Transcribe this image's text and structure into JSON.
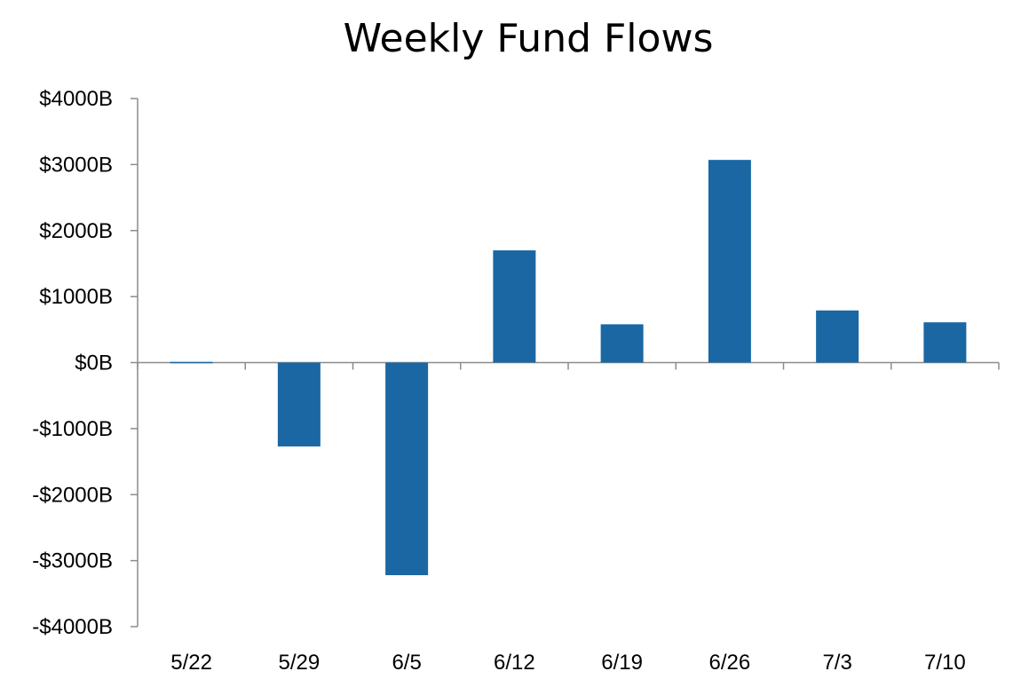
{
  "chart_data": {
    "type": "bar",
    "title": "Weekly Fund Flows",
    "xlabel": "",
    "ylabel": "",
    "categories": [
      "5/22",
      "5/29",
      "6/5",
      "6/12",
      "6/19",
      "6/26",
      "7/3",
      "7/10"
    ],
    "values": [
      0,
      -1270,
      -3220,
      1700,
      580,
      3070,
      790,
      610
    ],
    "ylim": [
      -4000,
      4000
    ],
    "yticks": [
      4000,
      3000,
      2000,
      1000,
      0,
      -1000,
      -2000,
      -3000,
      -4000
    ],
    "ytick_labels": [
      "$4000B",
      "$3000B",
      "$2000B",
      "$1000B",
      "$0B",
      "-$1000B",
      "-$2000B",
      "-$3000B",
      "-$4000B"
    ],
    "grid": false,
    "legend": "none",
    "bar_color": "#1a67a3",
    "axis_color": "#8c8c8c"
  }
}
